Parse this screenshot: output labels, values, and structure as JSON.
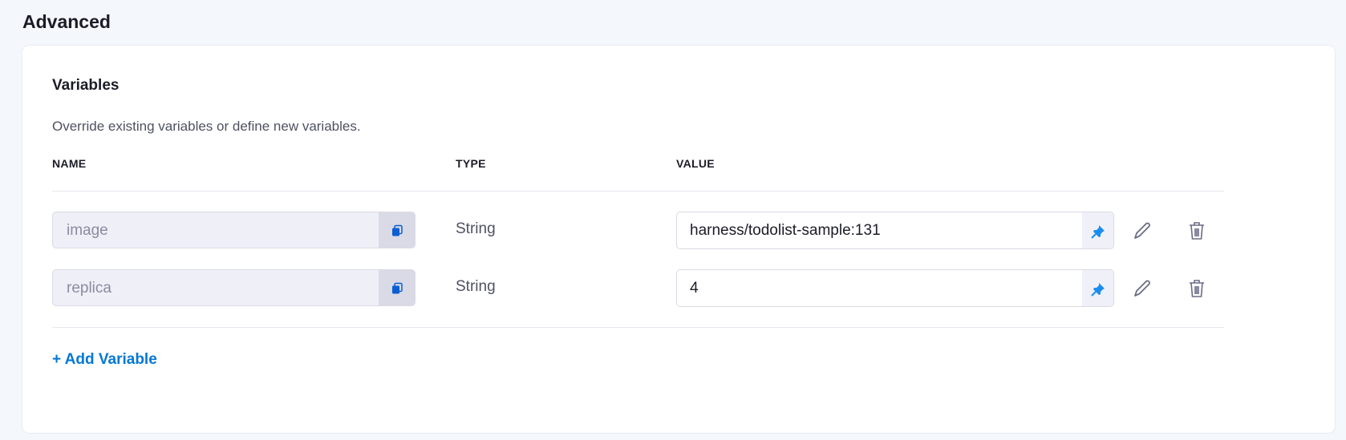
{
  "section_title": "Advanced",
  "variables": {
    "title": "Variables",
    "description": "Override existing variables or define new variables.",
    "columns": {
      "name": "NAME",
      "type": "TYPE",
      "value": "VALUE"
    },
    "rows": [
      {
        "name": "image",
        "type": "String",
        "value": "harness/todolist-sample:131"
      },
      {
        "name": "replica",
        "type": "String",
        "value": "4"
      }
    ],
    "add_label": "+ Add Variable"
  },
  "colors": {
    "accent": "#0278d5",
    "copy_icon": "#0b5fd1",
    "pin_icon": "#1a8ef0"
  }
}
